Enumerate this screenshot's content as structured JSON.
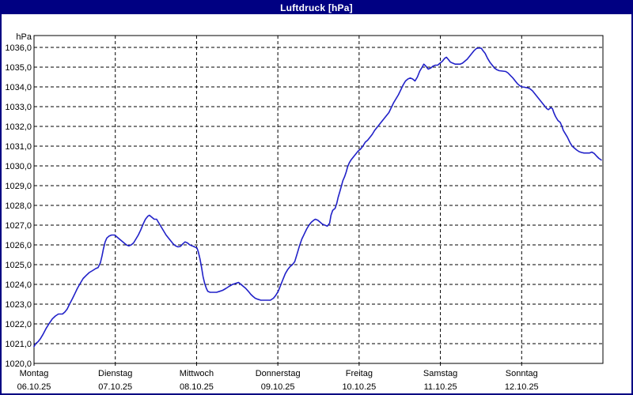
{
  "window": {
    "title": "Luftdruck [hPa]"
  },
  "colors": {
    "titlebar": "#000082",
    "border": "#000082",
    "line": "#2121c8",
    "grid": "#000000",
    "background": "#ffffff",
    "text": "#000000"
  },
  "chart_data": {
    "type": "line",
    "title": "Luftdruck [hPa]",
    "ylabel": "hPa",
    "xlabel": "",
    "x_unit": "hours_from_monday_00",
    "xlim": [
      0,
      168
    ],
    "ylim": [
      1020,
      1036.6
    ],
    "grid": "dashed",
    "legend": "none",
    "y_ticks": [
      {
        "value": 1020,
        "label": "1020,0"
      },
      {
        "value": 1021,
        "label": "1021,0"
      },
      {
        "value": 1022,
        "label": "1022,0"
      },
      {
        "value": 1023,
        "label": "1023,0"
      },
      {
        "value": 1024,
        "label": "1024,0"
      },
      {
        "value": 1025,
        "label": "1025,0"
      },
      {
        "value": 1026,
        "label": "1026,0"
      },
      {
        "value": 1027,
        "label": "1027,0"
      },
      {
        "value": 1028,
        "label": "1028,0"
      },
      {
        "value": 1029,
        "label": "1029,0"
      },
      {
        "value": 1030,
        "label": "1030,0"
      },
      {
        "value": 1031,
        "label": "1031,0"
      },
      {
        "value": 1032,
        "label": "1032,0"
      },
      {
        "value": 1033,
        "label": "1033,0"
      },
      {
        "value": 1034,
        "label": "1034,0"
      },
      {
        "value": 1035,
        "label": "1035,0"
      },
      {
        "value": 1036,
        "label": "1036,0"
      }
    ],
    "x_days": [
      {
        "name": "Montag",
        "date": "06.10.25",
        "hour": 0
      },
      {
        "name": "Dienstag",
        "date": "07.10.25",
        "hour": 24
      },
      {
        "name": "Mittwoch",
        "date": "08.10.25",
        "hour": 48
      },
      {
        "name": "Donnerstag",
        "date": "09.10.25",
        "hour": 72
      },
      {
        "name": "Freitag",
        "date": "10.10.25",
        "hour": 96
      },
      {
        "name": "Samstag",
        "date": "11.10.25",
        "hour": 120
      },
      {
        "name": "Sonntag",
        "date": "12.10.25",
        "hour": 144
      }
    ],
    "series": [
      {
        "name": "Luftdruck",
        "unit": "hPa",
        "color": "#2121c8",
        "points": [
          [
            0,
            1020.85
          ],
          [
            0.5,
            1021.0
          ],
          [
            1.2,
            1021.1
          ],
          [
            1.9,
            1021.25
          ],
          [
            2.6,
            1021.45
          ],
          [
            3.5,
            1021.75
          ],
          [
            4.4,
            1022.0
          ],
          [
            5.4,
            1022.25
          ],
          [
            6.3,
            1022.4
          ],
          [
            7.2,
            1022.5
          ],
          [
            8.4,
            1022.5
          ],
          [
            9.1,
            1022.6
          ],
          [
            9.8,
            1022.75
          ],
          [
            10.5,
            1023.0
          ],
          [
            11.4,
            1023.3
          ],
          [
            12.1,
            1023.55
          ],
          [
            12.8,
            1023.8
          ],
          [
            13.8,
            1024.1
          ],
          [
            14.5,
            1024.3
          ],
          [
            15.4,
            1024.45
          ],
          [
            16.3,
            1024.6
          ],
          [
            17.3,
            1024.7
          ],
          [
            18.2,
            1024.8
          ],
          [
            18.9,
            1024.85
          ],
          [
            19.6,
            1025.1
          ],
          [
            20.1,
            1025.45
          ],
          [
            20.5,
            1025.8
          ],
          [
            21.0,
            1026.15
          ],
          [
            21.5,
            1026.35
          ],
          [
            22.2,
            1026.45
          ],
          [
            22.9,
            1026.5
          ],
          [
            23.8,
            1026.5
          ],
          [
            24.5,
            1026.4
          ],
          [
            25.2,
            1026.3
          ],
          [
            25.9,
            1026.2
          ],
          [
            26.6,
            1026.1
          ],
          [
            27.3,
            1026.0
          ],
          [
            28.0,
            1025.95
          ],
          [
            28.7,
            1026.0
          ],
          [
            29.4,
            1026.1
          ],
          [
            30.1,
            1026.3
          ],
          [
            30.8,
            1026.5
          ],
          [
            31.5,
            1026.75
          ],
          [
            32.2,
            1027.05
          ],
          [
            32.9,
            1027.3
          ],
          [
            33.6,
            1027.45
          ],
          [
            34.1,
            1027.5
          ],
          [
            34.8,
            1027.4
          ],
          [
            35.5,
            1027.3
          ],
          [
            36.2,
            1027.3
          ],
          [
            36.9,
            1027.1
          ],
          [
            37.6,
            1026.9
          ],
          [
            38.3,
            1026.7
          ],
          [
            39.0,
            1026.5
          ],
          [
            39.7,
            1026.35
          ],
          [
            40.4,
            1026.2
          ],
          [
            41.1,
            1026.05
          ],
          [
            41.8,
            1025.95
          ],
          [
            42.5,
            1025.9
          ],
          [
            43.2,
            1025.92
          ],
          [
            43.9,
            1026.05
          ],
          [
            44.6,
            1026.15
          ],
          [
            45.3,
            1026.1
          ],
          [
            46.0,
            1026.0
          ],
          [
            46.7,
            1025.95
          ],
          [
            47.4,
            1025.9
          ],
          [
            48.1,
            1025.85
          ],
          [
            48.5,
            1025.65
          ],
          [
            49.0,
            1025.3
          ],
          [
            49.5,
            1024.85
          ],
          [
            49.9,
            1024.4
          ],
          [
            50.4,
            1024.05
          ],
          [
            50.9,
            1023.8
          ],
          [
            51.3,
            1023.65
          ],
          [
            52.0,
            1023.6
          ],
          [
            53.0,
            1023.6
          ],
          [
            53.9,
            1023.6
          ],
          [
            54.8,
            1023.65
          ],
          [
            55.7,
            1023.7
          ],
          [
            56.7,
            1023.8
          ],
          [
            57.6,
            1023.9
          ],
          [
            58.6,
            1024.0
          ],
          [
            59.5,
            1024.05
          ],
          [
            60.4,
            1024.1
          ],
          [
            61.1,
            1024.0
          ],
          [
            61.8,
            1023.9
          ],
          [
            62.5,
            1023.8
          ],
          [
            63.3,
            1023.65
          ],
          [
            64.0,
            1023.5
          ],
          [
            64.6,
            1023.4
          ],
          [
            65.3,
            1023.3
          ],
          [
            66.0,
            1023.25
          ],
          [
            67.0,
            1023.2
          ],
          [
            67.9,
            1023.2
          ],
          [
            68.8,
            1023.2
          ],
          [
            69.8,
            1023.2
          ],
          [
            70.7,
            1023.3
          ],
          [
            71.4,
            1023.45
          ],
          [
            72.1,
            1023.65
          ],
          [
            72.8,
            1023.95
          ],
          [
            73.5,
            1024.25
          ],
          [
            74.2,
            1024.55
          ],
          [
            74.9,
            1024.75
          ],
          [
            75.6,
            1024.9
          ],
          [
            76.3,
            1025.0
          ],
          [
            77.0,
            1025.15
          ],
          [
            77.7,
            1025.55
          ],
          [
            78.4,
            1025.95
          ],
          [
            79.1,
            1026.3
          ],
          [
            79.8,
            1026.55
          ],
          [
            80.5,
            1026.8
          ],
          [
            81.2,
            1027.0
          ],
          [
            81.9,
            1027.15
          ],
          [
            82.6,
            1027.25
          ],
          [
            83.1,
            1027.3
          ],
          [
            83.8,
            1027.25
          ],
          [
            84.5,
            1027.15
          ],
          [
            85.2,
            1027.05
          ],
          [
            85.9,
            1027.0
          ],
          [
            86.6,
            1026.95
          ],
          [
            87.3,
            1027.1
          ],
          [
            87.7,
            1027.5
          ],
          [
            88.2,
            1027.75
          ],
          [
            88.9,
            1027.85
          ],
          [
            89.4,
            1028.1
          ],
          [
            89.8,
            1028.4
          ],
          [
            90.3,
            1028.7
          ],
          [
            90.8,
            1029.0
          ],
          [
            91.2,
            1029.25
          ],
          [
            91.7,
            1029.45
          ],
          [
            92.2,
            1029.7
          ],
          [
            92.6,
            1029.95
          ],
          [
            93.1,
            1030.15
          ],
          [
            93.6,
            1030.3
          ],
          [
            94.3,
            1030.45
          ],
          [
            95.0,
            1030.6
          ],
          [
            95.7,
            1030.75
          ],
          [
            96.4,
            1030.85
          ],
          [
            97.1,
            1031.0
          ],
          [
            97.8,
            1031.2
          ],
          [
            98.5,
            1031.3
          ],
          [
            99.2,
            1031.45
          ],
          [
            99.9,
            1031.6
          ],
          [
            100.6,
            1031.8
          ],
          [
            101.3,
            1031.95
          ],
          [
            102.0,
            1032.1
          ],
          [
            102.7,
            1032.25
          ],
          [
            103.4,
            1032.4
          ],
          [
            104.1,
            1032.55
          ],
          [
            104.8,
            1032.7
          ],
          [
            105.5,
            1032.95
          ],
          [
            106.2,
            1033.2
          ],
          [
            106.9,
            1033.4
          ],
          [
            107.6,
            1033.6
          ],
          [
            108.3,
            1033.85
          ],
          [
            109.0,
            1034.1
          ],
          [
            109.7,
            1034.3
          ],
          [
            110.4,
            1034.4
          ],
          [
            111.1,
            1034.45
          ],
          [
            111.8,
            1034.4
          ],
          [
            112.5,
            1034.3
          ],
          [
            113.2,
            1034.5
          ],
          [
            113.9,
            1034.8
          ],
          [
            114.6,
            1035.0
          ],
          [
            115.1,
            1035.15
          ],
          [
            115.7,
            1035.05
          ],
          [
            116.4,
            1034.9
          ],
          [
            117.1,
            1034.95
          ],
          [
            117.8,
            1035.05
          ],
          [
            118.5,
            1035.1
          ],
          [
            119.2,
            1035.1
          ],
          [
            119.9,
            1035.2
          ],
          [
            120.6,
            1035.3
          ],
          [
            121.3,
            1035.45
          ],
          [
            121.8,
            1035.5
          ],
          [
            122.3,
            1035.4
          ],
          [
            123.0,
            1035.25
          ],
          [
            123.7,
            1035.2
          ],
          [
            124.4,
            1035.15
          ],
          [
            125.1,
            1035.15
          ],
          [
            125.8,
            1035.15
          ],
          [
            126.5,
            1035.2
          ],
          [
            127.2,
            1035.3
          ],
          [
            127.9,
            1035.4
          ],
          [
            128.6,
            1035.55
          ],
          [
            129.3,
            1035.7
          ],
          [
            130.0,
            1035.85
          ],
          [
            130.7,
            1035.95
          ],
          [
            131.4,
            1035.97
          ],
          [
            132.1,
            1035.95
          ],
          [
            132.5,
            1035.85
          ],
          [
            133.2,
            1035.7
          ],
          [
            133.9,
            1035.45
          ],
          [
            134.6,
            1035.25
          ],
          [
            135.3,
            1035.1
          ],
          [
            136.0,
            1034.95
          ],
          [
            136.7,
            1034.87
          ],
          [
            137.4,
            1034.82
          ],
          [
            138.4,
            1034.8
          ],
          [
            139.3,
            1034.78
          ],
          [
            140.0,
            1034.7
          ],
          [
            140.7,
            1034.57
          ],
          [
            141.4,
            1034.45
          ],
          [
            142.1,
            1034.3
          ],
          [
            142.8,
            1034.15
          ],
          [
            143.5,
            1034.05
          ],
          [
            144.2,
            1034.0
          ],
          [
            144.9,
            1033.98
          ],
          [
            145.8,
            1033.95
          ],
          [
            146.5,
            1033.9
          ],
          [
            147.2,
            1033.8
          ],
          [
            147.9,
            1033.65
          ],
          [
            148.6,
            1033.5
          ],
          [
            149.3,
            1033.35
          ],
          [
            150.0,
            1033.2
          ],
          [
            150.7,
            1033.05
          ],
          [
            151.4,
            1032.9
          ],
          [
            151.9,
            1032.85
          ],
          [
            152.6,
            1032.95
          ],
          [
            153.1,
            1032.9
          ],
          [
            153.5,
            1032.7
          ],
          [
            154.0,
            1032.5
          ],
          [
            154.7,
            1032.3
          ],
          [
            155.4,
            1032.2
          ],
          [
            155.9,
            1032.0
          ],
          [
            156.3,
            1031.8
          ],
          [
            156.8,
            1031.65
          ],
          [
            157.5,
            1031.45
          ],
          [
            158.2,
            1031.2
          ],
          [
            158.9,
            1031.0
          ],
          [
            159.6,
            1030.9
          ],
          [
            160.3,
            1030.8
          ],
          [
            161.0,
            1030.72
          ],
          [
            161.7,
            1030.68
          ],
          [
            162.4,
            1030.65
          ],
          [
            163.3,
            1030.65
          ],
          [
            164.0,
            1030.65
          ],
          [
            164.7,
            1030.7
          ],
          [
            165.4,
            1030.63
          ],
          [
            166.1,
            1030.5
          ],
          [
            166.8,
            1030.38
          ],
          [
            167.5,
            1030.3
          ]
        ]
      }
    ]
  }
}
